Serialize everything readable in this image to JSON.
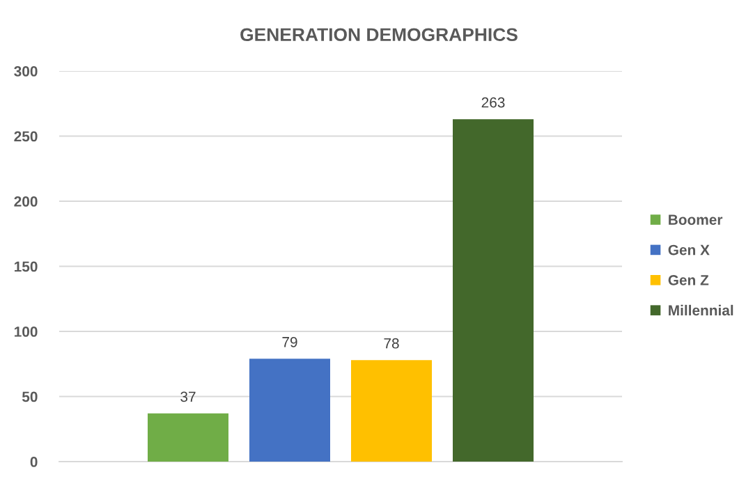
{
  "chart_data": {
    "type": "bar",
    "title": "GENERATION DEMOGRAPHICS",
    "categories": [
      null
    ],
    "series": [
      {
        "name": "Boomer",
        "color": "#70ad47",
        "values": [
          37
        ]
      },
      {
        "name": "Gen X",
        "color": "#4472c4",
        "values": [
          79
        ]
      },
      {
        "name": "Gen Z",
        "color": "#ffc000",
        "values": [
          78
        ]
      },
      {
        "name": "Millennial",
        "color": "#43682b",
        "values": [
          263
        ]
      }
    ],
    "ylim": [
      0,
      300
    ],
    "yticks": [
      0,
      50,
      100,
      150,
      200,
      250,
      300
    ],
    "grid": "y",
    "legend": "right",
    "data_labels": true
  }
}
